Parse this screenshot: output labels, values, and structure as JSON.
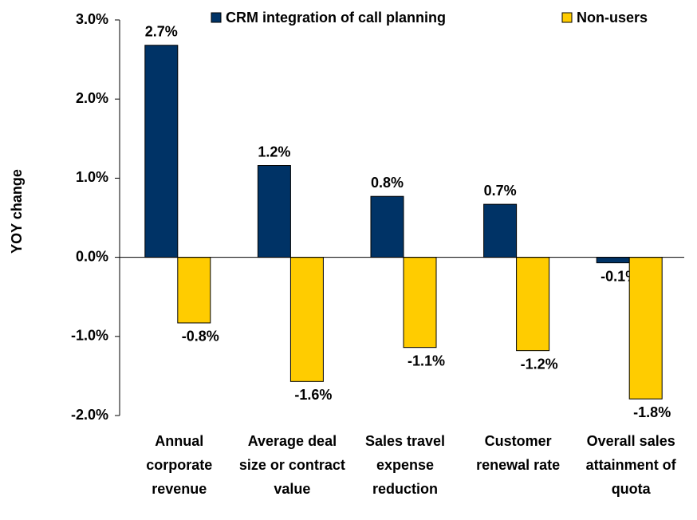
{
  "chart_data": {
    "type": "bar",
    "y_label": "YOY change",
    "categories": [
      "Annual corporate revenue",
      "Average deal size or contract value",
      "Sales travel expense reduction",
      "Customer renewal rate",
      "Overall sales attainment of quota"
    ],
    "series": [
      {
        "name": "CRM integration of call planning",
        "color": "#003366",
        "values": [
          2.68,
          1.16,
          0.77,
          0.67,
          -0.07
        ],
        "value_labels": [
          "2.7%",
          "1.2%",
          "0.8%",
          "0.7%",
          "-0.1%"
        ]
      },
      {
        "name": "Non-users",
        "color": "#ffcc00",
        "values": [
          -0.83,
          -1.57,
          -1.14,
          -1.18,
          -1.79
        ],
        "value_labels": [
          "-0.8%",
          "-1.6%",
          "-1.1%",
          "-1.2%",
          "-1.8%"
        ]
      }
    ],
    "ylim": [
      -2,
      3
    ],
    "yticks": [
      {
        "value": -2,
        "label": "-2.0%"
      },
      {
        "value": -1,
        "label": "-1.0%"
      },
      {
        "value": 0,
        "label": "0.0%"
      },
      {
        "value": 1,
        "label": "1.0%"
      },
      {
        "value": 2,
        "label": "2.0%"
      },
      {
        "value": 3,
        "label": "3.0%"
      }
    ],
    "legend": "top"
  }
}
